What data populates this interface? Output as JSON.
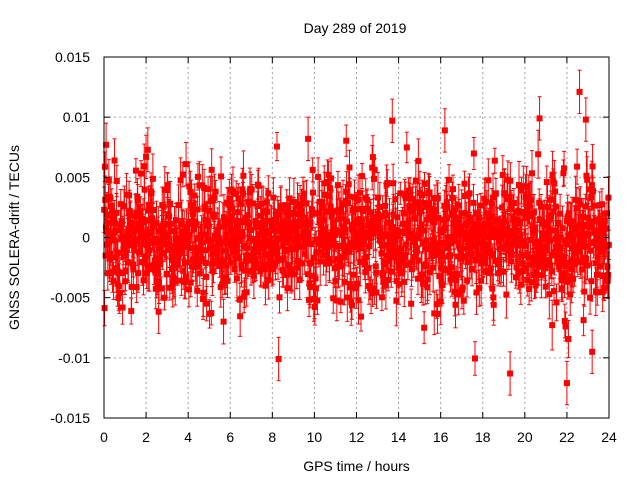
{
  "chart_data": {
    "type": "scatter",
    "title": "Day 289 of 2019",
    "xlabel": "GPS time / hours",
    "ylabel": "GNSS SOLERA-drift / TECUs",
    "xlim": [
      0,
      24
    ],
    "ylim": [
      -0.015,
      0.015
    ],
    "xticks": [
      0,
      2,
      4,
      6,
      8,
      10,
      12,
      14,
      16,
      18,
      20,
      22,
      24
    ],
    "yticks": [
      -0.015,
      -0.01,
      -0.005,
      0,
      0.005,
      0.01,
      0.015
    ],
    "ytick_labels": [
      "-0.015",
      "-0.01",
      "-0.005",
      "0",
      "0.005",
      "0.01",
      "0.015"
    ],
    "grid": true,
    "legend": "none",
    "series": [
      {
        "color": "#ff0000",
        "marker": "square",
        "error_bars": true,
        "noise_sigma": 0.0025,
        "typical_error": 0.0015,
        "notable_points": [
          {
            "x": 0.1,
            "y": 0.0077
          },
          {
            "x": 0.5,
            "y": 0.0064
          },
          {
            "x": 2.0,
            "y": 0.0067
          },
          {
            "x": 3.9,
            "y": 0.0061
          },
          {
            "x": 8.3,
            "y": -0.0101
          },
          {
            "x": 9.7,
            "y": 0.0082
          },
          {
            "x": 13.7,
            "y": 0.0097
          },
          {
            "x": 16.2,
            "y": 0.0089
          },
          {
            "x": 19.3,
            "y": -0.0113
          },
          {
            "x": 20.7,
            "y": 0.0099
          },
          {
            "x": 22.0,
            "y": -0.0121
          },
          {
            "x": 22.6,
            "y": 0.0121
          },
          {
            "x": 22.9,
            "y": 0.0098
          },
          {
            "x": 23.2,
            "y": -0.0095
          }
        ]
      }
    ]
  }
}
